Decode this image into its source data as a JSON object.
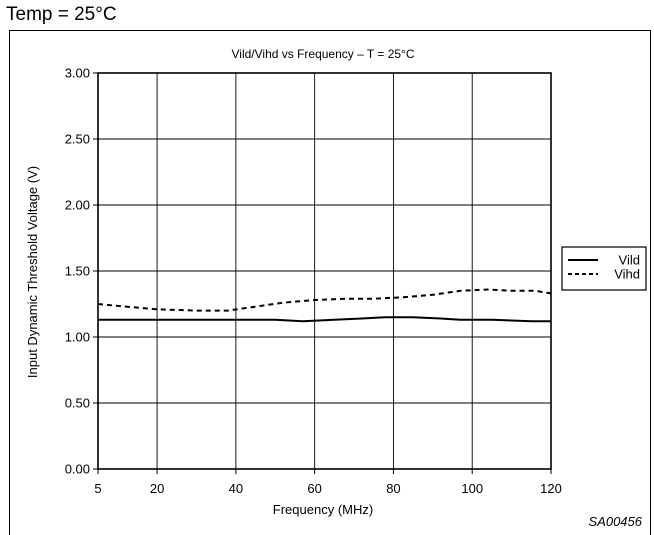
{
  "header": {
    "caption": "Temp = 25°C"
  },
  "footer": {
    "reference": "SA00456"
  },
  "chart_data": {
    "type": "line",
    "title": "Vild/Vihd vs Frequency – T = 25°C",
    "xlabel": "Frequency (MHz)",
    "ylabel": "Input Dynamic Threshold Voltage (V)",
    "xlim": [
      5,
      120
    ],
    "ylim": [
      0,
      3
    ],
    "x_ticks": [
      5,
      20,
      40,
      60,
      80,
      100,
      120
    ],
    "x_tick_labels": [
      "5",
      "20",
      "40",
      "60",
      "80",
      "100",
      "120"
    ],
    "y_ticks": [
      0,
      0.5,
      1.0,
      1.5,
      2.0,
      2.5,
      3.0
    ],
    "y_tick_labels": [
      "0.00",
      "0.50",
      "1.00",
      "1.50",
      "2.00",
      "2.50",
      "3.00"
    ],
    "grid": true,
    "legend_position": "right",
    "series": [
      {
        "name": "Vild",
        "style": "solid",
        "x": [
          5,
          20,
          40,
          50,
          57,
          65,
          72,
          78,
          85,
          92,
          97,
          105,
          115,
          120
        ],
        "y": [
          1.13,
          1.13,
          1.13,
          1.13,
          1.12,
          1.13,
          1.14,
          1.15,
          1.15,
          1.14,
          1.13,
          1.13,
          1.12,
          1.12
        ]
      },
      {
        "name": "Vihd",
        "style": "dashed",
        "x": [
          5,
          12,
          20,
          30,
          38,
          45,
          52,
          60,
          68,
          75,
          82,
          90,
          97,
          104,
          110,
          116,
          120
        ],
        "y": [
          1.25,
          1.23,
          1.21,
          1.2,
          1.2,
          1.23,
          1.26,
          1.28,
          1.29,
          1.29,
          1.3,
          1.32,
          1.35,
          1.36,
          1.35,
          1.35,
          1.33
        ]
      }
    ]
  }
}
